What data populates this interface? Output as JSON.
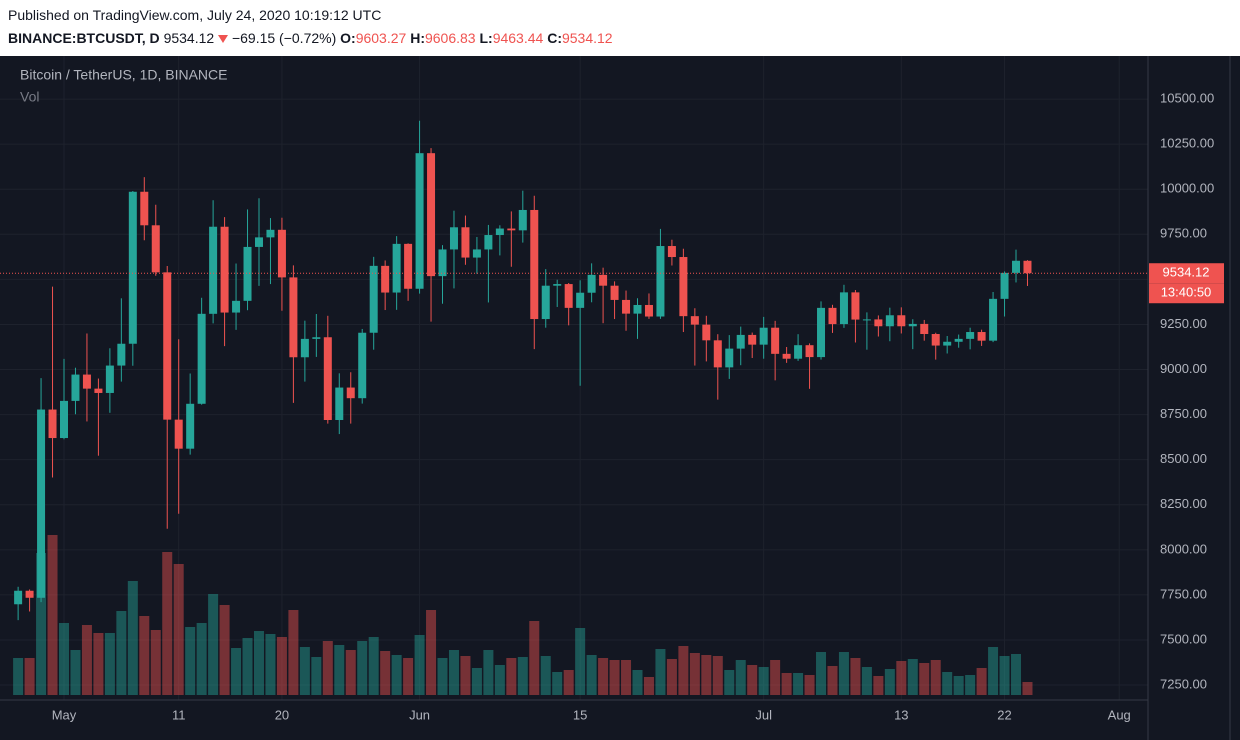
{
  "header": {
    "published": "Published on TradingView.com, July 24, 2020 10:19:12 UTC",
    "symbol": "BINANCE:BTCUSDT, D",
    "price": 9534.12,
    "change": "−69.15 (−0.72%)",
    "o_label": "O:",
    "open": 9603.27,
    "h_label": "H:",
    "high": 9606.83,
    "l_label": "L:",
    "low": 9463.44,
    "c_label": "C:",
    "close": 9534.12
  },
  "chart_data": {
    "type": "candlestick",
    "title": "Bitcoin / TetherUS, 1D, BINANCE",
    "volume_label": "Vol",
    "countdown": "13:40:50",
    "up_color": "#26a69a",
    "down_color": "#ef5350",
    "grid": true,
    "categories": [
      null,
      null,
      null,
      null,
      "May",
      null,
      null,
      null,
      null,
      null,
      null,
      null,
      null,
      null,
      "11",
      null,
      null,
      null,
      null,
      null,
      null,
      null,
      null,
      "20",
      null,
      null,
      null,
      null,
      null,
      null,
      null,
      null,
      null,
      null,
      null,
      "Jun",
      null,
      null,
      null,
      null,
      null,
      null,
      null,
      null,
      null,
      null,
      null,
      null,
      null,
      "15",
      null,
      null,
      null,
      null,
      null,
      null,
      null,
      null,
      null,
      null,
      null,
      null,
      null,
      null,
      null,
      "Jul",
      null,
      null,
      null,
      null,
      null,
      null,
      null,
      null,
      null,
      null,
      null,
      "13",
      null,
      null,
      null,
      null,
      null,
      null,
      null,
      null,
      "22",
      null,
      null,
      null,
      null,
      null,
      null,
      null,
      null,
      null,
      "Aug",
      null,
      null
    ],
    "open": [
      7698,
      7773,
      7734,
      8778,
      8620,
      8826,
      8972,
      8894,
      8870,
      9022,
      9143,
      9986,
      9800,
      9539,
      8722,
      8561,
      8810,
      9309,
      9792,
      9316,
      9381,
      9680,
      9733,
      9775,
      9511,
      9068,
      9170,
      9179,
      8720,
      8900,
      8841,
      9204,
      9575,
      9427,
      9697,
      9448,
      10200,
      9518,
      9666,
      9789,
      9621,
      9666,
      9746,
      9782,
      9772,
      9885,
      9280,
      9465,
      9474,
      9342,
      9426,
      9525,
      9465,
      9386,
      9310,
      9358,
      9294,
      9685,
      9624,
      9296,
      9249,
      9162,
      9012,
      9116,
      9192,
      9138,
      9232,
      9087,
      9060,
      9135,
      9069,
      9342,
      9252,
      9428,
      9277,
      9278,
      9240,
      9301,
      9240,
      9253,
      9197,
      9133,
      9154,
      9170,
      9208,
      9160,
      9392,
      9536,
      9603.27,
      null,
      null,
      null,
      null,
      null,
      null,
      null,
      null,
      null,
      null
    ],
    "high": [
      7795,
      7780,
      8952,
      9460,
      9059,
      9010,
      9200,
      8950,
      9118,
      9395,
      9990,
      10067,
      9914,
      9574,
      9168,
      8978,
      9398,
      9939,
      9845,
      9588,
      9888,
      9950,
      9840,
      9842,
      9578,
      9271,
      9308,
      9298,
      8979,
      8985,
      9225,
      9625,
      9605,
      9740,
      9700,
      10380,
      10228,
      9690,
      9881,
      9854,
      9735,
      9802,
      9800,
      9877,
      9992,
      9964,
      9557,
      9498,
      9480,
      9495,
      9589,
      9565,
      9489,
      9438,
      9395,
      9422,
      9780,
      9720,
      9670,
      9340,
      9298,
      9196,
      9191,
      9238,
      9205,
      9292,
      9270,
      9125,
      9196,
      9145,
      9378,
      9359,
      9470,
      9441,
      9317,
      9300,
      9343,
      9345,
      9279,
      9275,
      9204,
      9186,
      9194,
      9232,
      9221,
      9430,
      9544,
      9665,
      9606.83,
      null,
      null,
      null,
      null,
      null,
      null,
      null,
      null,
      null,
      null
    ],
    "low": [
      7610,
      7658,
      7710,
      8401,
      8613,
      8752,
      8712,
      8522,
      8760,
      8933,
      9021,
      9717,
      9520,
      8117,
      8200,
      8528,
      8805,
      9256,
      9130,
      9220,
      9329,
      9464,
      9474,
      9326,
      8815,
      8933,
      9070,
      8700,
      8642,
      8700,
      8811,
      9110,
      9330,
      9331,
      9381,
      9421,
      9266,
      9365,
      9450,
      9581,
      9531,
      9372,
      9633,
      9570,
      9704,
      9113,
      9232,
      9347,
      9245,
      8910,
      9373,
      9257,
      9280,
      9215,
      9170,
      9281,
      9281,
      9577,
      9208,
      9022,
      9045,
      8833,
      8948,
      9024,
      9064,
      9060,
      8940,
      9037,
      9048,
      8893,
      9055,
      9203,
      9231,
      9150,
      9110,
      9183,
      9157,
      9200,
      9113,
      9160,
      9055,
      9089,
      9121,
      9112,
      9131,
      9152,
      9294,
      9483,
      9463.44,
      null,
      null,
      null,
      null,
      null,
      null,
      null,
      null,
      null,
      null
    ],
    "close": [
      7773,
      7734,
      8778,
      8620,
      8826,
      8972,
      8894,
      8870,
      9022,
      9143,
      9986,
      9800,
      9539,
      8722,
      8561,
      8810,
      9309,
      9792,
      9316,
      9381,
      9680,
      9733,
      9775,
      9511,
      9068,
      9170,
      9179,
      8720,
      8900,
      8841,
      9204,
      9575,
      9427,
      9697,
      9448,
      10200,
      9518,
      9666,
      9789,
      9621,
      9666,
      9746,
      9782,
      9772,
      9885,
      9280,
      9465,
      9474,
      9342,
      9426,
      9525,
      9465,
      9386,
      9310,
      9358,
      9294,
      9685,
      9624,
      9296,
      9249,
      9162,
      9012,
      9116,
      9192,
      9138,
      9232,
      9087,
      9060,
      9135,
      9069,
      9342,
      9252,
      9428,
      9277,
      9278,
      9240,
      9301,
      9240,
      9253,
      9197,
      9133,
      9154,
      9170,
      9208,
      9160,
      9392,
      9536,
      9603.27,
      9534.12,
      null,
      null,
      null,
      null,
      null,
      null,
      null,
      null,
      null,
      null
    ],
    "volume": [
      37,
      37,
      142,
      160,
      72,
      45,
      70,
      62,
      62,
      84,
      114,
      79,
      65,
      143,
      131,
      68,
      72,
      101,
      90,
      47,
      57,
      64,
      61,
      58,
      85,
      48,
      38,
      54,
      50,
      45,
      54,
      58,
      44,
      40,
      37,
      60,
      85,
      37,
      45,
      39,
      27,
      45,
      30,
      37,
      38,
      74,
      39,
      23,
      25,
      67,
      40,
      37,
      35,
      35,
      25,
      18,
      46,
      36,
      49,
      42,
      40,
      39,
      25,
      35,
      30,
      28,
      35,
      22,
      22,
      20,
      43,
      29,
      43,
      37,
      28,
      19,
      26,
      34,
      36,
      32,
      35,
      23,
      19,
      20,
      27,
      48,
      39,
      41,
      13,
      null,
      null,
      null,
      null,
      null,
      null,
      null,
      null,
      null,
      null
    ],
    "ylim": [
      7167,
      10739
    ],
    "yticks": [
      {
        "value": 7250,
        "label": "7250.00"
      },
      {
        "value": 7500,
        "label": "7500.00"
      },
      {
        "value": 7750,
        "label": "7750.00"
      },
      {
        "value": 8000,
        "label": "8000.00"
      },
      {
        "value": 8250,
        "label": "8250.00"
      },
      {
        "value": 8500,
        "label": "8500.00"
      },
      {
        "value": 8750,
        "label": "8750.00"
      },
      {
        "value": 9000,
        "label": "9000.00"
      },
      {
        "value": 9250,
        "label": "9250.00"
      },
      {
        "value": 9500,
        "label": "9500.00"
      },
      {
        "value": 9750,
        "label": "9750.00"
      },
      {
        "value": 10000,
        "label": "10000.00"
      },
      {
        "value": 10250,
        "label": "10250.00"
      },
      {
        "value": 10500,
        "label": "10500.00"
      }
    ]
  }
}
